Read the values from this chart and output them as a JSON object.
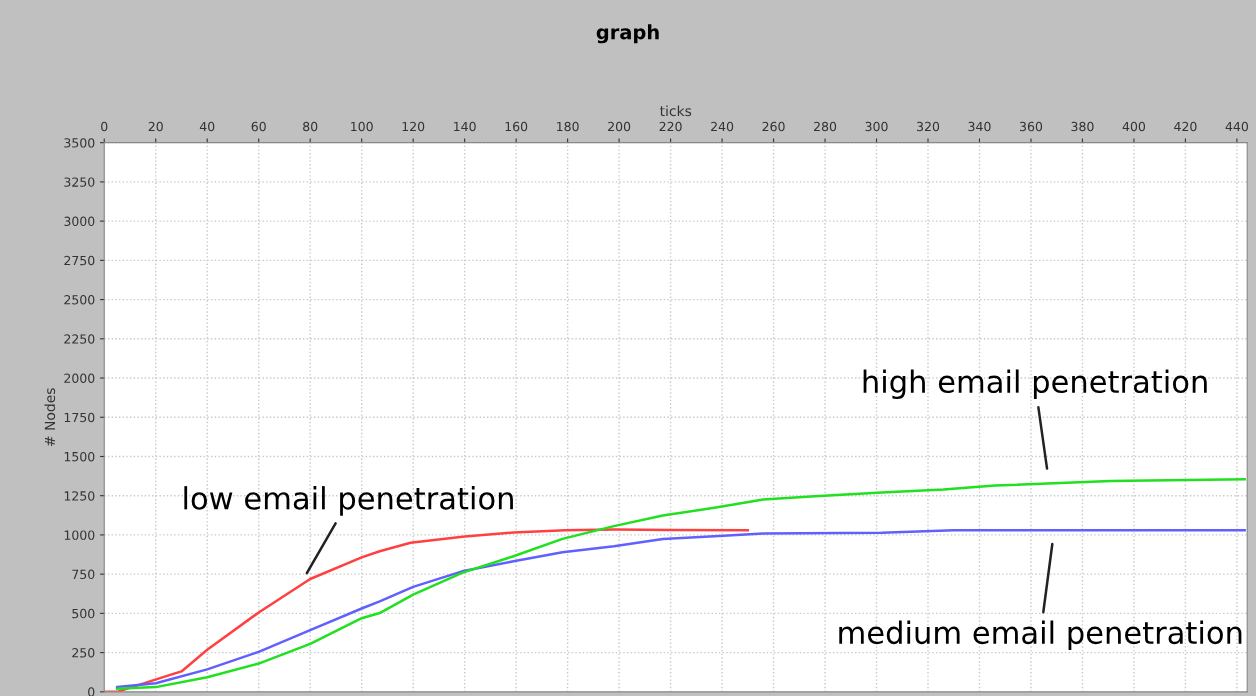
{
  "chart_data": {
    "type": "line",
    "title": "graph",
    "xlabel": "ticks",
    "ylabel": "# Nodes",
    "xlim": [
      0,
      444
    ],
    "xticks": [
      0,
      20,
      40,
      60,
      80,
      100,
      120,
      140,
      160,
      180,
      200,
      220,
      240,
      260,
      280,
      300,
      320,
      340,
      360,
      380,
      400,
      420,
      440
    ],
    "ylim": [
      0,
      3500
    ],
    "yticks": [
      0,
      250,
      500,
      750,
      1000,
      1250,
      1500,
      1750,
      2000,
      2250,
      2500,
      2750,
      3000,
      3250,
      3500
    ],
    "grid": true,
    "line_style": "solid",
    "marker": "none",
    "series": [
      {
        "color": "#ff4040",
        "x": [
          0,
          5,
          25,
          30,
          40,
          60,
          80,
          100,
          107,
          119,
          140,
          159,
          179,
          198,
          220,
          250
        ],
        "values": [
          0,
          0,
          105,
          130,
          268,
          506,
          719,
          857,
          896,
          950,
          990,
          1015,
          1030,
          1034,
          1032,
          1030
        ]
      },
      {
        "color": "#6060ff",
        "x": [
          5,
          20,
          40,
          60,
          80,
          100,
          107,
          120,
          139,
          159,
          178,
          198,
          217,
          237,
          256,
          302,
          330,
          443
        ],
        "values": [
          30,
          55,
          143,
          255,
          393,
          531,
          577,
          669,
          768,
          832,
          890,
          928,
          974,
          992,
          1009,
          1014,
          1030,
          1030
        ]
      },
      {
        "color": "#20e020",
        "x": [
          5,
          20,
          40,
          60,
          80,
          100,
          107,
          120,
          139,
          159,
          178,
          198,
          217,
          237,
          256,
          276,
          302,
          326,
          346,
          391,
          443
        ],
        "values": [
          20,
          30,
          93,
          180,
          306,
          469,
          502,
          619,
          758,
          864,
          975,
          1056,
          1124,
          1173,
          1226,
          1247,
          1270,
          1290,
          1315,
          1343,
          1354
        ]
      }
    ],
    "annotations": [
      {
        "text": "low email penetration",
        "x": 76,
        "y": 680
      },
      {
        "text": "high email penetration",
        "x": 367,
        "y": 1335
      },
      {
        "text": "medium email penetration",
        "x": 369,
        "y": 1030
      }
    ]
  }
}
